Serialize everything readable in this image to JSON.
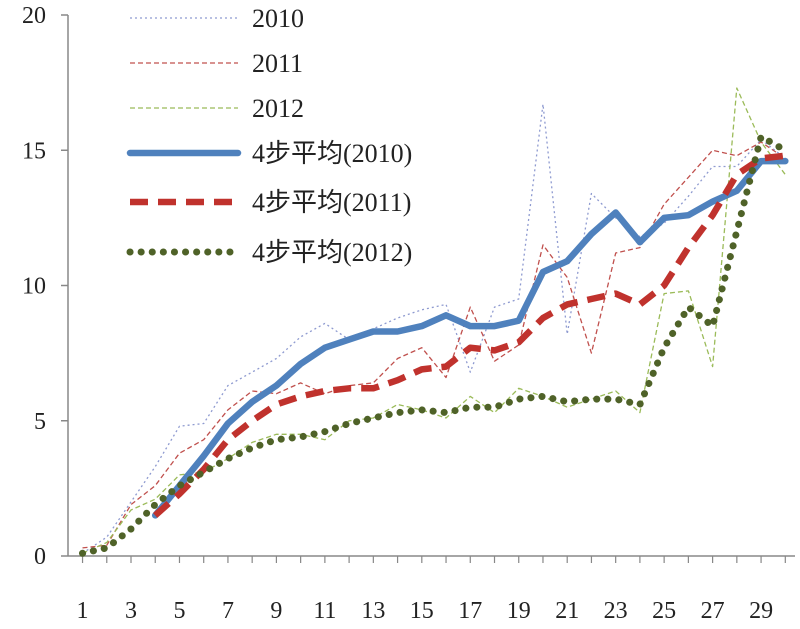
{
  "chart_data": {
    "type": "line",
    "title": "",
    "xlabel": "",
    "ylabel": "",
    "x": [
      1,
      2,
      3,
      4,
      5,
      6,
      7,
      8,
      9,
      10,
      11,
      12,
      13,
      14,
      15,
      16,
      17,
      18,
      19,
      20,
      21,
      22,
      23,
      24,
      25,
      26,
      27,
      28,
      29,
      30
    ],
    "x_tick_labels": [
      "1",
      "3",
      "5",
      "7",
      "9",
      "11",
      "13",
      "15",
      "17",
      "19",
      "21",
      "23",
      "25",
      "27",
      "29"
    ],
    "x_tick_values": [
      1,
      3,
      5,
      7,
      9,
      11,
      13,
      15,
      17,
      19,
      21,
      23,
      25,
      27,
      29
    ],
    "y_ticks": [
      0,
      5,
      10,
      15,
      20
    ],
    "y_tick_labels": [
      "0",
      "5",
      "10",
      "15",
      "20"
    ],
    "ylim": [
      0,
      20
    ],
    "xlim": [
      0.4,
      30.4
    ],
    "legend_position": "top-left",
    "grid": false,
    "series": [
      {
        "name": "2010",
        "color": "#8E9AD0",
        "style": "thin-dotted",
        "values": [
          0.1,
          0.7,
          2.0,
          3.3,
          4.8,
          4.9,
          6.3,
          6.8,
          7.3,
          8.1,
          8.6,
          8.0,
          8.4,
          8.8,
          9.1,
          9.3,
          6.8,
          9.2,
          9.5,
          16.7,
          8.2,
          13.4,
          12.5,
          11.8,
          12.3,
          13.3,
          14.4,
          14.4,
          15.4,
          14.7
        ]
      },
      {
        "name": "2011",
        "color": "#C0504D",
        "style": "thin-dashed",
        "values": [
          0.3,
          0.4,
          1.9,
          2.6,
          3.8,
          4.3,
          5.4,
          6.1,
          6.0,
          6.4,
          6.0,
          6.3,
          6.4,
          7.3,
          7.7,
          6.6,
          9.2,
          7.2,
          7.8,
          11.5,
          10.3,
          7.5,
          11.2,
          11.4,
          13.0,
          14.0,
          15.0,
          14.8,
          15.3,
          14.7
        ]
      },
      {
        "name": "2012",
        "color": "#9BBB59",
        "style": "thin-dashed",
        "values": [
          0.1,
          0.5,
          1.7,
          2.1,
          3.0,
          3.1,
          3.6,
          4.2,
          4.5,
          4.5,
          4.3,
          5.0,
          5.1,
          5.6,
          5.4,
          5.1,
          5.9,
          5.3,
          6.2,
          5.9,
          5.5,
          5.8,
          6.1,
          5.3,
          9.7,
          9.8,
          7.0,
          17.3,
          15.3,
          14.1
        ]
      },
      {
        "name": "4步平均(2010)",
        "color": "#4F81BD",
        "style": "thick-solid",
        "values": [
          null,
          null,
          null,
          1.5,
          2.6,
          3.7,
          4.9,
          5.7,
          6.3,
          7.1,
          7.7,
          8.0,
          8.3,
          8.3,
          8.5,
          8.9,
          8.5,
          8.5,
          8.7,
          10.5,
          10.9,
          11.9,
          12.7,
          11.6,
          12.5,
          12.6,
          13.1,
          13.5,
          14.6,
          14.6
        ]
      },
      {
        "name": "4步平均(2011)",
        "color": "#C0322D",
        "style": "thick-dashed",
        "values": [
          null,
          null,
          null,
          1.5,
          2.3,
          3.2,
          4.3,
          5.0,
          5.6,
          5.9,
          6.1,
          6.2,
          6.2,
          6.5,
          6.9,
          7.0,
          7.7,
          7.6,
          7.9,
          8.8,
          9.3,
          9.5,
          9.7,
          9.3,
          10.0,
          11.4,
          12.6,
          14.1,
          14.7,
          14.8
        ]
      },
      {
        "name": "4步平均(2012)",
        "color": "#4F6228",
        "style": "thick-dotted",
        "values": [
          0.1,
          0.3,
          1.0,
          1.9,
          2.6,
          3.1,
          3.6,
          4.0,
          4.3,
          4.4,
          4.6,
          4.9,
          5.1,
          5.3,
          5.4,
          5.3,
          5.5,
          5.5,
          5.8,
          5.9,
          5.7,
          5.8,
          5.8,
          5.6,
          7.7,
          9.2,
          8.5,
          12.0,
          15.5,
          15.0
        ]
      }
    ]
  }
}
